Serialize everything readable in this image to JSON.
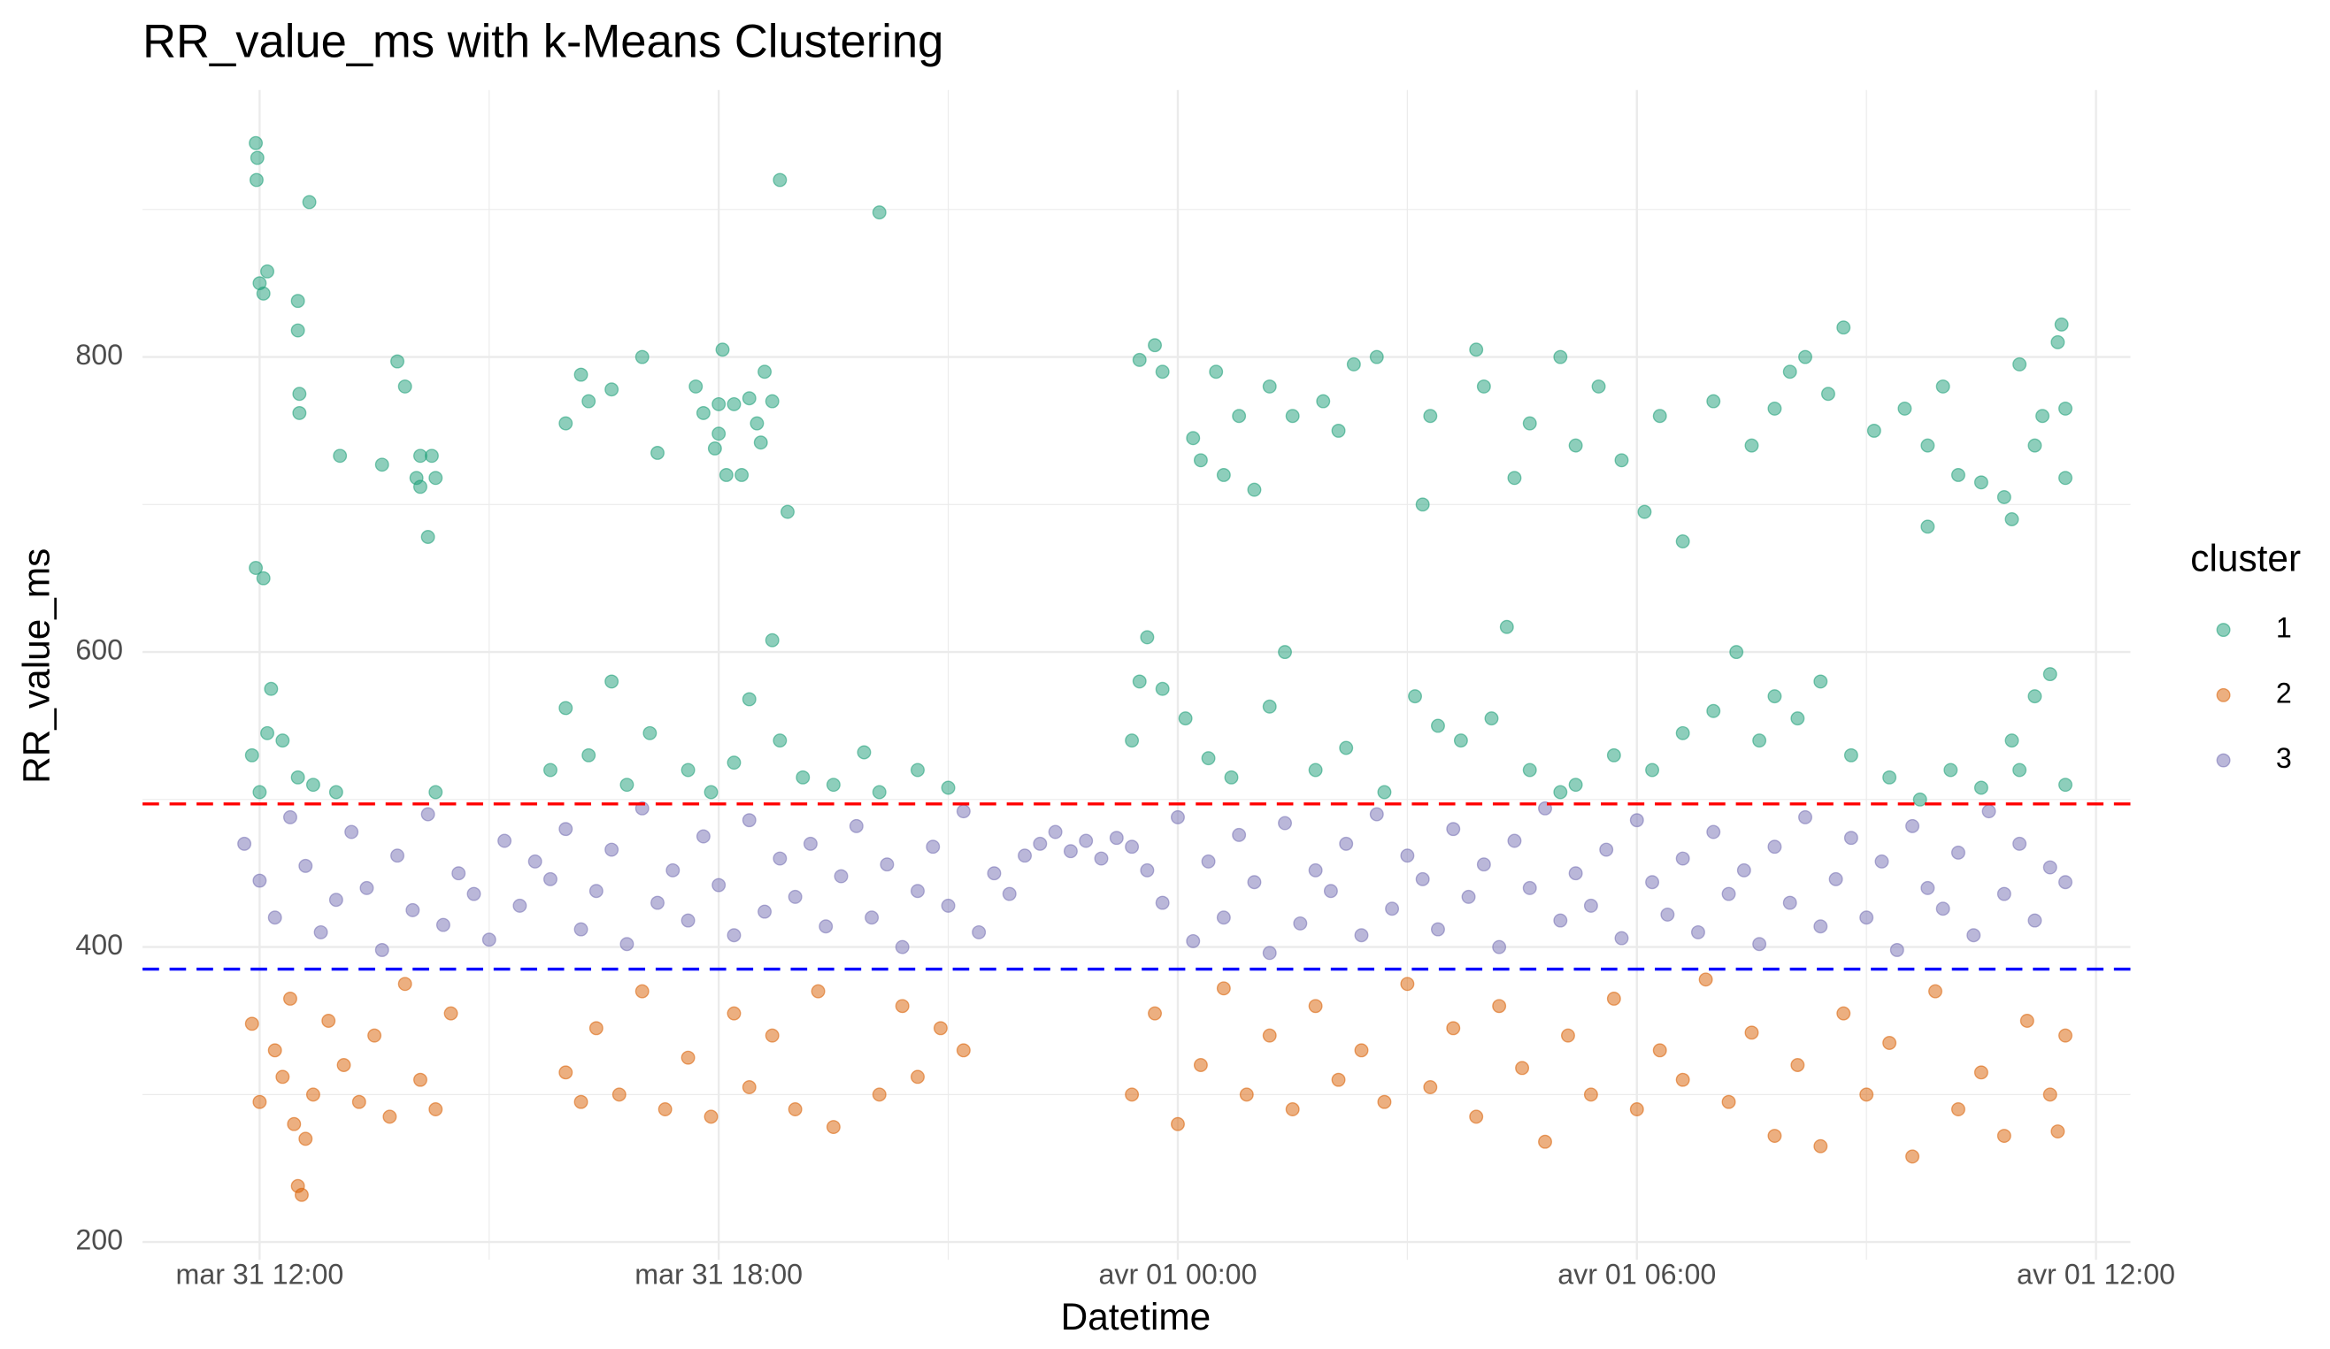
{
  "chart_data": {
    "type": "scatter",
    "title": "RR_value_ms with k-Means Clustering",
    "xlabel": "Datetime",
    "ylabel": "RR_value_ms",
    "legend_title": "cluster",
    "legend_position": "right",
    "grid": true,
    "minor_grid": true,
    "xlim": [
      10.47,
      36.45
    ],
    "xticks": [
      {
        "value": 12,
        "label": "mar 31 12:00"
      },
      {
        "value": 18,
        "label": "mar 31 18:00"
      },
      {
        "value": 24,
        "label": "avr 01 00:00"
      },
      {
        "value": 30,
        "label": "avr 01 06:00"
      },
      {
        "value": 36,
        "label": "avr 01 12:00"
      }
    ],
    "ylim": [
      188,
      981
    ],
    "yticks": [
      200,
      400,
      600,
      800
    ],
    "hlines": [
      {
        "value": 497,
        "color": "#ff0000"
      },
      {
        "value": 385,
        "color": "#0000ff"
      }
    ],
    "series": [
      {
        "name": "1",
        "color": "#1b9e77",
        "x": [
          11.95,
          11.97,
          11.96,
          12.0,
          12.1,
          12.05,
          12.65,
          12.5,
          12.5,
          12.52,
          12.52,
          13.05,
          13.6,
          13.8,
          13.9,
          14.1,
          14.05,
          14.1,
          14.2,
          14.25,
          14.3,
          11.95,
          12.05,
          16.0,
          16.2,
          16.3,
          16.6,
          17.0,
          17.2,
          17.7,
          17.8,
          18.0,
          18.1,
          18.2,
          18.4,
          18.5,
          18.7,
          18.3,
          17.95,
          18.0,
          18.05,
          18.55,
          18.6,
          18.7,
          18.9,
          18.8,
          20.1,
          23.5,
          23.7,
          23.8,
          24.5,
          24.2,
          24.3,
          24.6,
          24.8,
          25.2,
          25.0,
          25.5,
          25.9,
          26.3,
          26.1,
          26.6,
          27.2,
          27.3,
          27.9,
          28.0,
          28.4,
          28.6,
          29.0,
          29.2,
          29.5,
          29.8,
          30.1,
          30.3,
          30.6,
          31.0,
          31.5,
          32.0,
          32.2,
          31.8,
          32.5,
          32.7,
          33.1,
          33.5,
          33.8,
          34.0,
          34.2,
          34.5,
          34.8,
          35.0,
          35.2,
          35.3,
          35.5,
          35.6,
          35.55,
          35.6,
          33.8,
          34.9,
          11.9,
          12.0,
          12.1,
          12.15,
          12.3,
          12.5,
          12.7,
          13.0,
          14.3,
          15.8,
          16.0,
          16.3,
          16.6,
          16.8,
          17.1,
          17.6,
          17.9,
          18.2,
          18.4,
          18.8,
          19.1,
          19.5,
          19.9,
          20.1,
          20.6,
          21.0,
          23.4,
          23.5,
          23.6,
          23.8,
          24.1,
          24.4,
          24.7,
          25.2,
          25.4,
          25.8,
          26.2,
          26.7,
          27.1,
          27.4,
          27.7,
          28.1,
          28.3,
          28.6,
          29.0,
          29.2,
          29.7,
          30.2,
          30.6,
          31.0,
          31.3,
          31.6,
          31.8,
          32.1,
          32.4,
          32.8,
          33.3,
          33.7,
          34.1,
          34.5,
          34.9,
          35.2,
          35.4,
          35.6,
          35.0
        ],
        "values": [
          945,
          935,
          920,
          850,
          858,
          843,
          905,
          838,
          818,
          775,
          762,
          733,
          727,
          797,
          780,
          733,
          718,
          712,
          678,
          733,
          718,
          657,
          650,
          755,
          788,
          770,
          778,
          800,
          735,
          780,
          762,
          748,
          720,
          768,
          772,
          755,
          608,
          720,
          738,
          768,
          805,
          742,
          790,
          770,
          695,
          920,
          898,
          798,
          808,
          790,
          790,
          745,
          730,
          720,
          760,
          780,
          710,
          760,
          770,
          795,
          750,
          800,
          700,
          760,
          805,
          780,
          718,
          755,
          800,
          740,
          780,
          730,
          695,
          760,
          675,
          770,
          740,
          790,
          800,
          765,
          775,
          820,
          750,
          765,
          740,
          780,
          720,
          715,
          705,
          795,
          740,
          760,
          810,
          765,
          822,
          718,
          685,
          690,
          530,
          505,
          545,
          575,
          540,
          515,
          510,
          505,
          505,
          520,
          562,
          530,
          580,
          510,
          545,
          520,
          505,
          525,
          568,
          540,
          515,
          510,
          532,
          505,
          520,
          508,
          540,
          580,
          610,
          575,
          555,
          528,
          515,
          563,
          600,
          520,
          535,
          505,
          570,
          550,
          540,
          555,
          617,
          520,
          505,
          510,
          530,
          520,
          545,
          560,
          600,
          540,
          570,
          555,
          580,
          530,
          515,
          500,
          520,
          508,
          540,
          570,
          585,
          510,
          520
        ]
      },
      {
        "name": "2",
        "color": "#d95f02",
        "x": [
          11.9,
          12.0,
          12.2,
          12.3,
          12.4,
          12.45,
          12.5,
          12.55,
          12.6,
          12.7,
          12.9,
          13.1,
          13.3,
          13.5,
          13.7,
          13.9,
          14.1,
          14.3,
          14.5,
          16.0,
          16.2,
          16.4,
          16.7,
          17.0,
          17.3,
          17.6,
          17.9,
          18.2,
          18.4,
          18.7,
          19.0,
          19.3,
          19.5,
          20.1,
          20.4,
          20.6,
          20.9,
          21.2,
          23.4,
          23.7,
          24,
          24.3,
          24.6,
          24.9,
          25.2,
          25.5,
          25.8,
          26.1,
          26.4,
          26.7,
          27,
          27.3,
          27.6,
          27.9,
          28.2,
          28.5,
          28.8,
          29.1,
          29.4,
          29.7,
          30,
          30.3,
          30.6,
          30.9,
          31.2,
          31.5,
          31.8,
          32.1,
          32.4,
          32.7,
          33,
          33.3,
          33.6,
          33.9,
          34.2,
          34.5,
          34.8,
          35.1,
          35.4,
          35.6,
          35.5
        ],
        "values": [
          348,
          295,
          330,
          312,
          365,
          280,
          238,
          232,
          270,
          300,
          350,
          320,
          295,
          340,
          285,
          375,
          310,
          290,
          355,
          315,
          295,
          345,
          300,
          370,
          290,
          325,
          285,
          355,
          305,
          340,
          290,
          370,
          278,
          300,
          360,
          312,
          345,
          330,
          300,
          355,
          280,
          320,
          372,
          300,
          340,
          290,
          360,
          310,
          330,
          295,
          375,
          305,
          345,
          285,
          360,
          318,
          268,
          340,
          300,
          365,
          290,
          330,
          310,
          378,
          295,
          342,
          272,
          320,
          265,
          355,
          300,
          335,
          258,
          370,
          290,
          315,
          272,
          350,
          300,
          340,
          275
        ]
      },
      {
        "name": "3",
        "color": "#7570b3",
        "x": [
          11.8,
          12,
          12.2,
          12.4,
          12.6,
          12.8,
          13,
          13.2,
          13.4,
          13.6,
          13.8,
          14,
          14.2,
          14.4,
          14.6,
          14.8,
          15,
          15.2,
          15.4,
          15.6,
          15.8,
          16,
          16.2,
          16.4,
          16.6,
          16.8,
          17,
          17.2,
          17.4,
          17.6,
          17.8,
          18,
          18.2,
          18.4,
          18.6,
          18.8,
          19,
          19.2,
          19.4,
          19.6,
          19.8,
          20,
          20.2,
          20.4,
          20.6,
          20.8,
          21,
          21.2,
          21.4,
          21.6,
          21.8,
          22,
          22.2,
          22.4,
          22.6,
          22.8,
          23,
          23.2,
          23.4,
          23.6,
          23.8,
          24,
          24.2,
          24.4,
          24.6,
          24.8,
          25,
          25.2,
          25.4,
          25.6,
          25.8,
          26,
          26.2,
          26.4,
          26.6,
          26.8,
          27,
          27.2,
          27.4,
          27.6,
          27.8,
          28,
          28.2,
          28.4,
          28.6,
          28.8,
          29,
          29.2,
          29.4,
          29.6,
          29.8,
          30,
          30.2,
          30.4,
          30.6,
          30.8,
          31,
          31.2,
          31.4,
          31.6,
          31.8,
          32,
          32.2,
          32.4,
          32.6,
          32.8,
          33,
          33.2,
          33.4,
          33.6,
          33.8,
          34,
          34.2,
          34.4,
          34.6,
          34.8,
          35,
          35.2,
          35.4,
          35.6
        ],
        "values": [
          470,
          445,
          420,
          488,
          455,
          410,
          432,
          478,
          440,
          398,
          462,
          425,
          490,
          415,
          450,
          436,
          405,
          472,
          428,
          458,
          446,
          480,
          412,
          438,
          466,
          402,
          494,
          430,
          452,
          418,
          475,
          442,
          408,
          486,
          424,
          460,
          434,
          470,
          414,
          448,
          482,
          420,
          456,
          400,
          438,
          468,
          428,
          492,
          410,
          450,
          436,
          462,
          470,
          478,
          465,
          472,
          460,
          474,
          468,
          452,
          430,
          488,
          404,
          458,
          420,
          476,
          444,
          396,
          484,
          416,
          452,
          438,
          470,
          408,
          490,
          426,
          462,
          446,
          412,
          480,
          434,
          456,
          400,
          472,
          440,
          494,
          418,
          450,
          428,
          466,
          406,
          486,
          444,
          422,
          460,
          410,
          478,
          436,
          452,
          402,
          468,
          430,
          488,
          414,
          446,
          474,
          420,
          458,
          398,
          482,
          440,
          426,
          464,
          408,
          492,
          436,
          470,
          418,
          454,
          444
        ]
      }
    ]
  }
}
